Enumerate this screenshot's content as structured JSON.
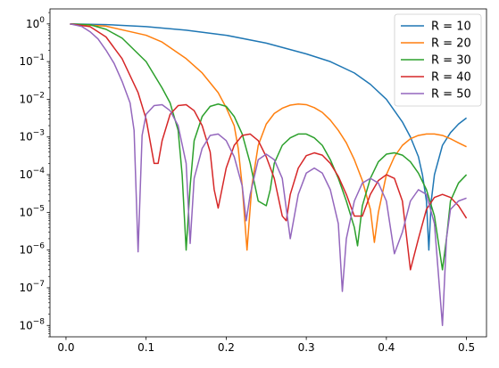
{
  "chart_data": {
    "type": "line",
    "title": "",
    "xlabel": "",
    "ylabel": "",
    "xlim": [
      -0.02,
      0.525
    ],
    "ylim": [
      5e-09,
      2.5
    ],
    "yscale": "log",
    "grid": false,
    "legend_position": "top-right",
    "x_ticks": [
      0.0,
      0.1,
      0.2,
      0.3,
      0.4,
      0.5
    ],
    "x_tick_labels": [
      "0.0",
      "0.1",
      "0.2",
      "0.3",
      "0.4",
      "0.5"
    ],
    "y_ticks": [
      1e-08,
      1e-07,
      1e-06,
      1e-05,
      0.0001,
      0.001,
      0.01,
      0.1,
      1
    ],
    "y_tick_labels": [
      {
        "base": "10",
        "exp": "−8"
      },
      {
        "base": "10",
        "exp": "−7"
      },
      {
        "base": "10",
        "exp": "−6"
      },
      {
        "base": "10",
        "exp": "−5"
      },
      {
        "base": "10",
        "exp": "−4"
      },
      {
        "base": "10",
        "exp": "−3"
      },
      {
        "base": "10",
        "exp": "−2"
      },
      {
        "base": "10",
        "exp": "−1"
      },
      {
        "base": "10",
        "exp": "0"
      }
    ],
    "series": [
      {
        "name": "R = 10",
        "color": "#1f77b4",
        "points": [
          [
            0.005,
            1.0
          ],
          [
            0.05,
            0.96
          ],
          [
            0.1,
            0.85
          ],
          [
            0.15,
            0.68
          ],
          [
            0.2,
            0.5
          ],
          [
            0.25,
            0.31
          ],
          [
            0.3,
            0.16
          ],
          [
            0.33,
            0.1
          ],
          [
            0.36,
            0.05
          ],
          [
            0.38,
            0.025
          ],
          [
            0.4,
            0.01
          ],
          [
            0.42,
            0.0025
          ],
          [
            0.43,
            0.001
          ],
          [
            0.44,
            0.0003
          ],
          [
            0.445,
            0.0001
          ],
          [
            0.45,
            2e-05
          ],
          [
            0.453,
            1e-06
          ],
          [
            0.456,
            2e-05
          ],
          [
            0.46,
            0.0001
          ],
          [
            0.47,
            0.0006
          ],
          [
            0.48,
            0.0013
          ],
          [
            0.49,
            0.0022
          ],
          [
            0.5,
            0.0032
          ]
        ]
      },
      {
        "name": "R = 20",
        "color": "#ff7f0e",
        "points": [
          [
            0.005,
            1.0
          ],
          [
            0.05,
            0.87
          ],
          [
            0.1,
            0.5
          ],
          [
            0.12,
            0.33
          ],
          [
            0.15,
            0.12
          ],
          [
            0.17,
            0.05
          ],
          [
            0.19,
            0.015
          ],
          [
            0.2,
            0.006
          ],
          [
            0.21,
            0.002
          ],
          [
            0.215,
            0.0005
          ],
          [
            0.22,
            5e-05
          ],
          [
            0.226,
            1e-06
          ],
          [
            0.232,
            5e-05
          ],
          [
            0.24,
            0.0006
          ],
          [
            0.25,
            0.0022
          ],
          [
            0.26,
            0.0042
          ],
          [
            0.27,
            0.0058
          ],
          [
            0.28,
            0.007
          ],
          [
            0.29,
            0.0075
          ],
          [
            0.3,
            0.0072
          ],
          [
            0.31,
            0.006
          ],
          [
            0.32,
            0.0045
          ],
          [
            0.33,
            0.0028
          ],
          [
            0.34,
            0.0015
          ],
          [
            0.35,
            0.0007
          ],
          [
            0.36,
            0.00025
          ],
          [
            0.37,
            7e-05
          ],
          [
            0.38,
            1.2e-05
          ],
          [
            0.385,
            1.6e-06
          ],
          [
            0.39,
            1e-05
          ],
          [
            0.4,
            0.0001
          ],
          [
            0.41,
            0.0003
          ],
          [
            0.42,
            0.0006
          ],
          [
            0.43,
            0.0009
          ],
          [
            0.44,
            0.0011
          ],
          [
            0.45,
            0.0012
          ],
          [
            0.46,
            0.0012
          ],
          [
            0.47,
            0.0011
          ],
          [
            0.48,
            0.0009
          ],
          [
            0.49,
            0.0007
          ],
          [
            0.5,
            0.00055
          ]
        ]
      },
      {
        "name": "R = 30",
        "color": "#2ca02c",
        "points": [
          [
            0.005,
            1.0
          ],
          [
            0.03,
            0.95
          ],
          [
            0.05,
            0.72
          ],
          [
            0.07,
            0.42
          ],
          [
            0.1,
            0.1
          ],
          [
            0.12,
            0.02
          ],
          [
            0.13,
            0.008
          ],
          [
            0.14,
            0.0015
          ],
          [
            0.145,
            0.0001
          ],
          [
            0.15,
            1e-06
          ],
          [
            0.155,
            5e-05
          ],
          [
            0.16,
            0.0008
          ],
          [
            0.17,
            0.0035
          ],
          [
            0.18,
            0.0065
          ],
          [
            0.19,
            0.0075
          ],
          [
            0.2,
            0.0065
          ],
          [
            0.21,
            0.0035
          ],
          [
            0.22,
            0.0012
          ],
          [
            0.23,
            0.0002
          ],
          [
            0.24,
            2e-05
          ],
          [
            0.25,
            1.5e-05
          ],
          [
            0.255,
            4e-05
          ],
          [
            0.26,
            0.0002
          ],
          [
            0.27,
            0.0006
          ],
          [
            0.28,
            0.00095
          ],
          [
            0.29,
            0.0012
          ],
          [
            0.3,
            0.0012
          ],
          [
            0.31,
            0.00095
          ],
          [
            0.32,
            0.0006
          ],
          [
            0.33,
            0.00025
          ],
          [
            0.34,
            8e-05
          ],
          [
            0.35,
            2e-05
          ],
          [
            0.36,
            4e-06
          ],
          [
            0.364,
            1.3e-06
          ],
          [
            0.37,
            1.5e-05
          ],
          [
            0.38,
            8e-05
          ],
          [
            0.39,
            0.00022
          ],
          [
            0.4,
            0.00035
          ],
          [
            0.41,
            0.00038
          ],
          [
            0.42,
            0.00033
          ],
          [
            0.43,
            0.00022
          ],
          [
            0.44,
            0.00011
          ],
          [
            0.45,
            4e-05
          ],
          [
            0.46,
            8e-06
          ],
          [
            0.47,
            3e-07
          ],
          [
            0.475,
            2e-06
          ],
          [
            0.48,
            2e-05
          ],
          [
            0.49,
            6e-05
          ],
          [
            0.5,
            0.0001
          ]
        ]
      },
      {
        "name": "R = 40",
        "color": "#d62728",
        "points": [
          [
            0.005,
            1.0
          ],
          [
            0.03,
            0.85
          ],
          [
            0.05,
            0.45
          ],
          [
            0.07,
            0.12
          ],
          [
            0.09,
            0.015
          ],
          [
            0.1,
            0.003
          ],
          [
            0.11,
            0.0002
          ],
          [
            0.115,
            0.0002
          ],
          [
            0.12,
            0.0008
          ],
          [
            0.13,
            0.004
          ],
          [
            0.14,
            0.0068
          ],
          [
            0.15,
            0.0072
          ],
          [
            0.16,
            0.005
          ],
          [
            0.17,
            0.002
          ],
          [
            0.18,
            0.0004
          ],
          [
            0.185,
            4e-05
          ],
          [
            0.19,
            1.3e-05
          ],
          [
            0.2,
            0.00015
          ],
          [
            0.21,
            0.0006
          ],
          [
            0.22,
            0.0011
          ],
          [
            0.23,
            0.0012
          ],
          [
            0.24,
            0.0008
          ],
          [
            0.25,
            0.0003
          ],
          [
            0.26,
            8e-05
          ],
          [
            0.27,
            8e-06
          ],
          [
            0.275,
            6e-06
          ],
          [
            0.28,
            3e-05
          ],
          [
            0.29,
            0.00015
          ],
          [
            0.3,
            0.00032
          ],
          [
            0.31,
            0.00038
          ],
          [
            0.32,
            0.00033
          ],
          [
            0.33,
            0.0002
          ],
          [
            0.34,
            9e-05
          ],
          [
            0.35,
            3e-05
          ],
          [
            0.36,
            8e-06
          ],
          [
            0.37,
            8e-06
          ],
          [
            0.38,
            3e-05
          ],
          [
            0.39,
            7e-05
          ],
          [
            0.4,
            0.0001
          ],
          [
            0.41,
            8e-05
          ],
          [
            0.42,
            2e-05
          ],
          [
            0.43,
            3e-07
          ],
          [
            0.44,
            2e-06
          ],
          [
            0.45,
            1.2e-05
          ],
          [
            0.46,
            2.5e-05
          ],
          [
            0.47,
            3e-05
          ],
          [
            0.48,
            2.5e-05
          ],
          [
            0.49,
            1.5e-05
          ],
          [
            0.5,
            7e-06
          ]
        ]
      },
      {
        "name": "R = 50",
        "color": "#9467bd",
        "points": [
          [
            0.005,
            1.0
          ],
          [
            0.02,
            0.85
          ],
          [
            0.03,
            0.62
          ],
          [
            0.04,
            0.4
          ],
          [
            0.05,
            0.2
          ],
          [
            0.06,
            0.09
          ],
          [
            0.07,
            0.03
          ],
          [
            0.08,
            0.008
          ],
          [
            0.085,
            0.0015
          ],
          [
            0.09,
            9e-07
          ],
          [
            0.095,
            0.0011
          ],
          [
            0.1,
            0.004
          ],
          [
            0.11,
            0.0068
          ],
          [
            0.12,
            0.0072
          ],
          [
            0.13,
            0.005
          ],
          [
            0.14,
            0.002
          ],
          [
            0.15,
            0.0002
          ],
          [
            0.155,
            1.5e-06
          ],
          [
            0.16,
            8e-05
          ],
          [
            0.17,
            0.0005
          ],
          [
            0.18,
            0.0011
          ],
          [
            0.19,
            0.0012
          ],
          [
            0.2,
            0.0008
          ],
          [
            0.21,
            0.0003
          ],
          [
            0.22,
            5e-05
          ],
          [
            0.225,
            6e-06
          ],
          [
            0.23,
            3e-05
          ],
          [
            0.24,
            0.00025
          ],
          [
            0.25,
            0.00035
          ],
          [
            0.26,
            0.00025
          ],
          [
            0.27,
            8e-05
          ],
          [
            0.28,
            2e-06
          ],
          [
            0.29,
            3e-05
          ],
          [
            0.3,
            0.00011
          ],
          [
            0.31,
            0.00015
          ],
          [
            0.32,
            0.00011
          ],
          [
            0.33,
            4e-05
          ],
          [
            0.34,
            5e-06
          ],
          [
            0.345,
            8e-08
          ],
          [
            0.35,
            2e-06
          ],
          [
            0.36,
            2e-05
          ],
          [
            0.37,
            6e-05
          ],
          [
            0.38,
            8e-05
          ],
          [
            0.39,
            6e-05
          ],
          [
            0.4,
            2e-05
          ],
          [
            0.41,
            8e-07
          ],
          [
            0.42,
            3e-06
          ],
          [
            0.43,
            2e-05
          ],
          [
            0.44,
            4e-05
          ],
          [
            0.45,
            3e-05
          ],
          [
            0.46,
            5e-06
          ],
          [
            0.47,
            1e-08
          ],
          [
            0.475,
            2e-06
          ],
          [
            0.48,
            1.2e-05
          ],
          [
            0.49,
            2e-05
          ],
          [
            0.5,
            2.4e-05
          ]
        ]
      }
    ]
  }
}
